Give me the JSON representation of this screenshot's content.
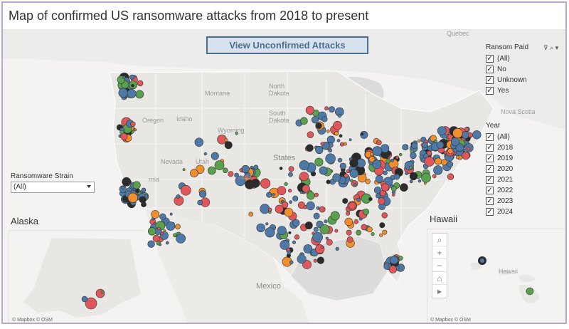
{
  "title": "Map of confirmed US ransomware attacks from 2018 to present",
  "view_button": "View Unconfirmed Attacks",
  "ransom_paid": {
    "title": "Ransom Paid",
    "options": [
      "(All)",
      "No",
      "Unknown",
      "Yes"
    ]
  },
  "year": {
    "title": "Year",
    "options": [
      "(All)",
      "2018",
      "2019",
      "2020",
      "2021",
      "2022",
      "2023",
      "2024"
    ]
  },
  "strain": {
    "label": "Ransomware Strain",
    "value": "(All)"
  },
  "insets": {
    "alaska": "Alaska",
    "hawaii": "Hawaii"
  },
  "attribution": "© Mapbox © OSM",
  "map_labels": {
    "quebec": "Quebec",
    "montana": "Montana",
    "north_dakota": "North\nDakota",
    "oregon": "Oregon",
    "idaho": "Idaho",
    "wyoming": "Wyoming",
    "south_dakota": "South\nDakota",
    "nevada": "Nevada",
    "utah": "Utah",
    "states": "States",
    "mexico": "Mexico",
    "nova_scotia": "Nova Scotia",
    "hawaii_small": "Hawaii",
    "colorado": "rado",
    "california": "rnia"
  },
  "colors": {
    "blue": "#4e79a7",
    "red": "#e15759",
    "green": "#59a14f",
    "orange": "#f28e2b",
    "dark": "#2b2b2b",
    "border": "#b9a6c9"
  }
}
